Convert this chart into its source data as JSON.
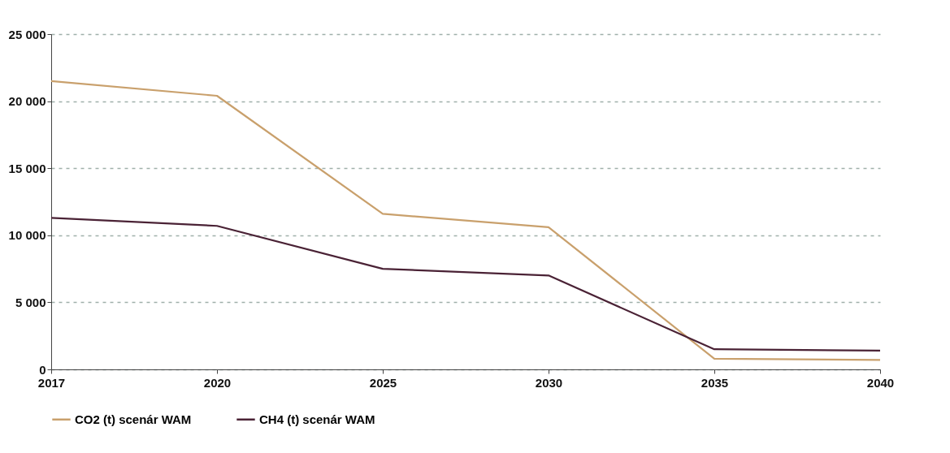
{
  "chart_data": {
    "type": "line",
    "categories": [
      "2017",
      "2020",
      "2025",
      "2030",
      "2035",
      "2040"
    ],
    "series": [
      {
        "name": "CO2 (t) scenár WAM",
        "color": "#c9a06c",
        "values": [
          21500,
          20400,
          11600,
          10600,
          800,
          700
        ]
      },
      {
        "name": "CH4 (t) scenár WAM",
        "color": "#4a2235",
        "values": [
          11300,
          10700,
          7500,
          7000,
          1500,
          1400
        ]
      }
    ],
    "ylim": [
      0,
      25000
    ],
    "yticks": [
      0,
      {
        "value": 5000,
        "label": "5 000"
      },
      {
        "value": 10000,
        "label": "10 000"
      },
      {
        "value": 15000,
        "label": "15 000"
      },
      {
        "value": 20000,
        "label": "20 000"
      },
      {
        "value": 25000,
        "label": "25 000"
      }
    ],
    "grid": "y",
    "legend": "bottom",
    "marker": "none",
    "line_style": "solid"
  }
}
